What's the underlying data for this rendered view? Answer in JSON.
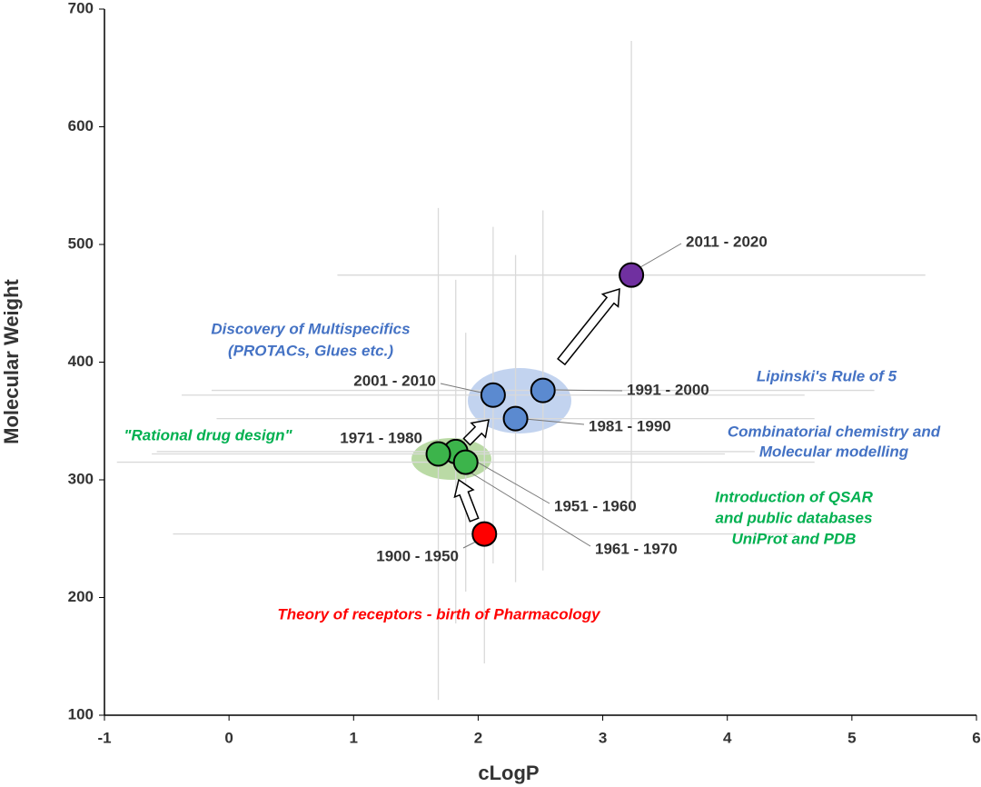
{
  "chart_data": {
    "type": "scatter",
    "x_label": "cLogP",
    "y_label": "Molecular Weight",
    "xlim": [
      -1,
      6
    ],
    "xticks": [
      -1,
      0,
      1,
      2,
      3,
      4,
      5,
      6
    ],
    "ylim": [
      100,
      700
    ],
    "yticks": [
      100,
      200,
      300,
      400,
      500,
      600,
      700
    ],
    "series": [
      {
        "name": "1900 - 1950",
        "color": "#ff0000",
        "x": 2.05,
        "y": 254,
        "x_err": 2.5,
        "y_err": 110
      },
      {
        "name": "1951 - 1960",
        "color": "#3cb44b",
        "x": 1.82,
        "y": 324,
        "x_err": 2.4,
        "y_err": 146
      },
      {
        "name": "1961 - 1970",
        "color": "#3cb44b",
        "x": 1.9,
        "y": 315,
        "x_err": 2.8,
        "y_err": 110
      },
      {
        "name": "1971 - 1980",
        "color": "#3cb44b",
        "x": 1.68,
        "y": 322,
        "x_err": 2.3,
        "y_err": 209
      },
      {
        "name": "1981 - 1990",
        "color": "#5b8ad0",
        "x": 2.3,
        "y": 352,
        "x_err": 2.4,
        "y_err": 139
      },
      {
        "name": "1991 - 2000",
        "color": "#5b8ad0",
        "x": 2.52,
        "y": 376,
        "x_err": 2.66,
        "y_err": 153
      },
      {
        "name": "2001 - 2010",
        "color": "#5b8ad0",
        "x": 2.12,
        "y": 372,
        "x_err": 2.5,
        "y_err": 143
      },
      {
        "name": "2011 - 2020",
        "color": "#7030a0",
        "x": 3.23,
        "y": 474,
        "x_err": 2.36,
        "y_err": 199
      }
    ],
    "annotations": [
      {
        "text": "Discovery of Multispecifics",
        "color": "#4472c4"
      },
      {
        "text": "(PROTACs, Glues etc.)",
        "color": "#4472c4"
      },
      {
        "text": "Lipinski's Rule of 5",
        "color": "#4472c4"
      },
      {
        "text": "Combinatorial chemistry and",
        "color": "#4472c4"
      },
      {
        "text": "Molecular modelling",
        "color": "#4472c4"
      },
      {
        "text": "\"Rational drug design\"",
        "color": "#00b050"
      },
      {
        "text": "Introduction of QSAR",
        "color": "#00b050"
      },
      {
        "text": "and public databases",
        "color": "#00b050"
      },
      {
        "text": "UniProt and PDB",
        "color": "#00b050"
      },
      {
        "text": "Theory of receptors - birth of Pharmacology",
        "color": "#ff0000"
      }
    ]
  }
}
